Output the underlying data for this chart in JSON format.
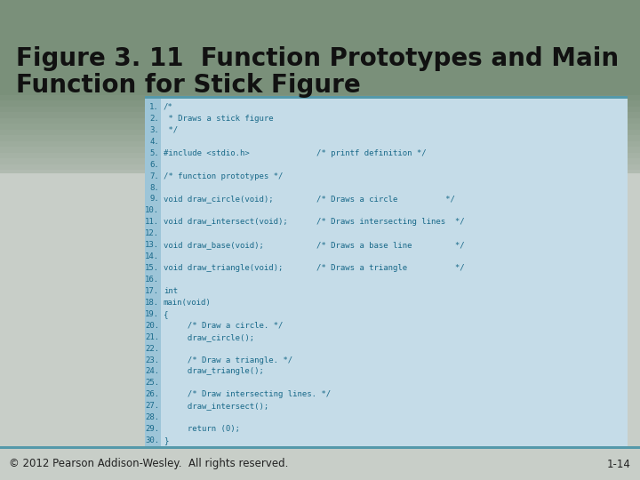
{
  "title_line1": "Figure 3. 11  Function Prototypes and Main",
  "title_line2": "Function for Stick Figure",
  "title_fontsize": 20,
  "title_color": "#111111",
  "bg_top_color": "#8a9e8a",
  "bg_mid_color": "#c8cec8",
  "bg_bottom_color": "#c8cec8",
  "code_bg": "#c5dce8",
  "code_num_strip": "#9dc5d8",
  "code_border_bottom": "#5599aa",
  "footer_text": "© 2012 Pearson Addison-Wesley.  All rights reserved.",
  "footer_right": "1-14",
  "footer_line_color": "#5599aa",
  "code_lines": [
    [
      "1.",
      "/*"
    ],
    [
      "2.",
      " * Draws a stick figure"
    ],
    [
      "3.",
      " */"
    ],
    [
      "4.",
      ""
    ],
    [
      "5.",
      "#include <stdio.h>              /* printf definition */"
    ],
    [
      "6.",
      ""
    ],
    [
      "7.",
      "/* function prototypes */"
    ],
    [
      "8.",
      ""
    ],
    [
      "9.",
      "void draw_circle(void);         /* Draws a circle          */"
    ],
    [
      "10.",
      ""
    ],
    [
      "11.",
      "void draw_intersect(void);      /* Draws intersecting lines  */"
    ],
    [
      "12.",
      ""
    ],
    [
      "13.",
      "void draw_base(void);           /* Draws a base line         */"
    ],
    [
      "14.",
      ""
    ],
    [
      "15.",
      "void draw_triangle(void);       /* Draws a triangle          */"
    ],
    [
      "16.",
      ""
    ],
    [
      "17.",
      "int"
    ],
    [
      "18.",
      "main(void)"
    ],
    [
      "19.",
      "{"
    ],
    [
      "20.",
      "     /* Draw a circle. */"
    ],
    [
      "21.",
      "     draw_circle();"
    ],
    [
      "22.",
      ""
    ],
    [
      "23.",
      "     /* Draw a triangle. */"
    ],
    [
      "24.",
      "     draw_triangle();"
    ],
    [
      "25.",
      ""
    ],
    [
      "26.",
      "     /* Draw intersecting lines. */"
    ],
    [
      "27.",
      "     draw_intersect();"
    ],
    [
      "28.",
      ""
    ],
    [
      "29.",
      "     return (0);"
    ],
    [
      "30.",
      "}"
    ]
  ],
  "code_color": "#1a6a8a",
  "code_fontsize": 6.5,
  "num_fontsize": 6.5
}
